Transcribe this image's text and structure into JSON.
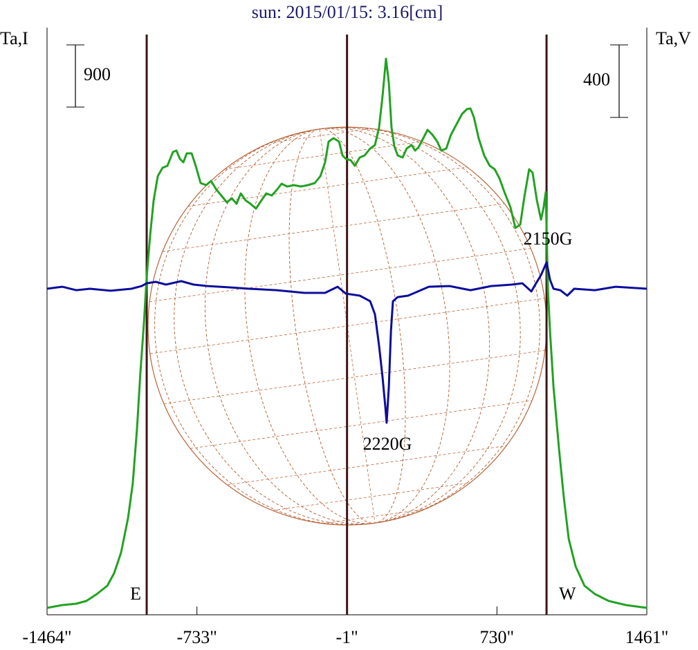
{
  "chart_data": {
    "type": "line",
    "title": "sun: 2015/01/15: 3.16[cm]",
    "ylabel": "Ta,I",
    "y2label": "Ta,V",
    "xlim": [
      -1464,
      1461
    ],
    "xticks": [
      {
        "value": -1464,
        "label": "-1464\""
      },
      {
        "value": -733,
        "label": "-733\""
      },
      {
        "value": -1,
        "label": "-1\""
      },
      {
        "value": 730,
        "label": "730\""
      },
      {
        "value": 1461,
        "label": "1461\""
      }
    ],
    "ylim": [
      0,
      8500
    ],
    "y2lim": [
      -1798,
      1440
    ],
    "y_scale_bar": 900,
    "y2_scale_bar": 400,
    "markers": [
      {
        "x": -978,
        "label": "E"
      },
      {
        "x": -1
      },
      {
        "x": 972,
        "label": "W"
      }
    ],
    "annotations": [
      "2150G",
      "2220G"
    ],
    "series": [
      {
        "name": "Ta,I",
        "color": "#22a222",
        "axis": "y",
        "x": [
          -1464,
          -1390,
          -1322,
          -1272,
          -1221,
          -1170,
          -1137,
          -1103,
          -1069,
          -1046,
          -1025,
          -1009,
          -992,
          -978,
          -961,
          -944,
          -924,
          -901,
          -877,
          -850,
          -833,
          -816,
          -799,
          -783,
          -759,
          -739,
          -715,
          -688,
          -664,
          -637,
          -614,
          -587,
          -563,
          -540,
          -519,
          -496,
          -472,
          -445,
          -418,
          -395,
          -368,
          -344,
          -320,
          -293,
          -260,
          -226,
          -192,
          -158,
          -131,
          -108,
          -91,
          -67,
          -40,
          -23,
          -7,
          17,
          37,
          61,
          85,
          112,
          135,
          155,
          172,
          189,
          203,
          216,
          230,
          246,
          270,
          290,
          314,
          331,
          348,
          371,
          392,
          415,
          439,
          459,
          483,
          506,
          533,
          560,
          584,
          601,
          618,
          641,
          668,
          695,
          719,
          742,
          769,
          796,
          820,
          844,
          864,
          887,
          904,
          925,
          945,
          958,
          968,
          979,
          989,
          1006,
          1033,
          1056,
          1080,
          1114,
          1157,
          1208,
          1275,
          1360,
          1461
        ],
        "values": [
          100,
          140,
          160,
          200,
          300,
          420,
          600,
          900,
          1400,
          1900,
          2700,
          3500,
          4200,
          4900,
          5500,
          6000,
          6350,
          6470,
          6500,
          6700,
          6720,
          6600,
          6550,
          6680,
          6680,
          6500,
          6250,
          6220,
          6280,
          6150,
          6070,
          5970,
          6030,
          5950,
          6100,
          6000,
          5950,
          5880,
          6000,
          6100,
          6070,
          6150,
          6240,
          6200,
          6220,
          6200,
          6220,
          6250,
          6350,
          6550,
          6850,
          6900,
          6850,
          6650,
          6600,
          6580,
          6500,
          6620,
          6650,
          6750,
          6800,
          7050,
          7500,
          8050,
          7700,
          7050,
          6780,
          6650,
          6620,
          6750,
          6800,
          6720,
          6770,
          6900,
          7020,
          6950,
          6850,
          6720,
          6750,
          6950,
          7100,
          7250,
          7320,
          7330,
          7200,
          6900,
          6650,
          6500,
          6450,
          6320,
          6100,
          5900,
          5600,
          5650,
          6050,
          6450,
          6400,
          6000,
          5720,
          5900,
          6120,
          4700,
          4100,
          3300,
          2400,
          1700,
          1100,
          700,
          420,
          300,
          200,
          140,
          100
        ]
      },
      {
        "name": "Ta,V",
        "color": "#0c0c9c",
        "axis": "y2",
        "x": [
          -1464,
          -1390,
          -1322,
          -1255,
          -1154,
          -1052,
          -1002,
          -978,
          -934,
          -884,
          -810,
          -749,
          -681,
          -580,
          -479,
          -344,
          -209,
          -108,
          -47,
          -7,
          61,
          112,
          135,
          155,
          172,
          186,
          192,
          203,
          213,
          223,
          246,
          297,
          398,
          499,
          601,
          702,
          803,
          854,
          898,
          921,
          945,
          972,
          989,
          1006,
          1039,
          1073,
          1107,
          1208,
          1309,
          1461
        ],
        "values": [
          0,
          11,
          -8,
          0,
          -11,
          0,
          15,
          30,
          38,
          23,
          42,
          23,
          15,
          8,
          0,
          -8,
          -23,
          -23,
          11,
          -27,
          -38,
          -69,
          -141,
          -312,
          -484,
          -655,
          -739,
          -541,
          -236,
          -69,
          -46,
          -38,
          11,
          15,
          -8,
          15,
          23,
          30,
          -15,
          30,
          76,
          145,
          50,
          0,
          -8,
          -38,
          0,
          -8,
          11,
          0
        ]
      }
    ]
  }
}
